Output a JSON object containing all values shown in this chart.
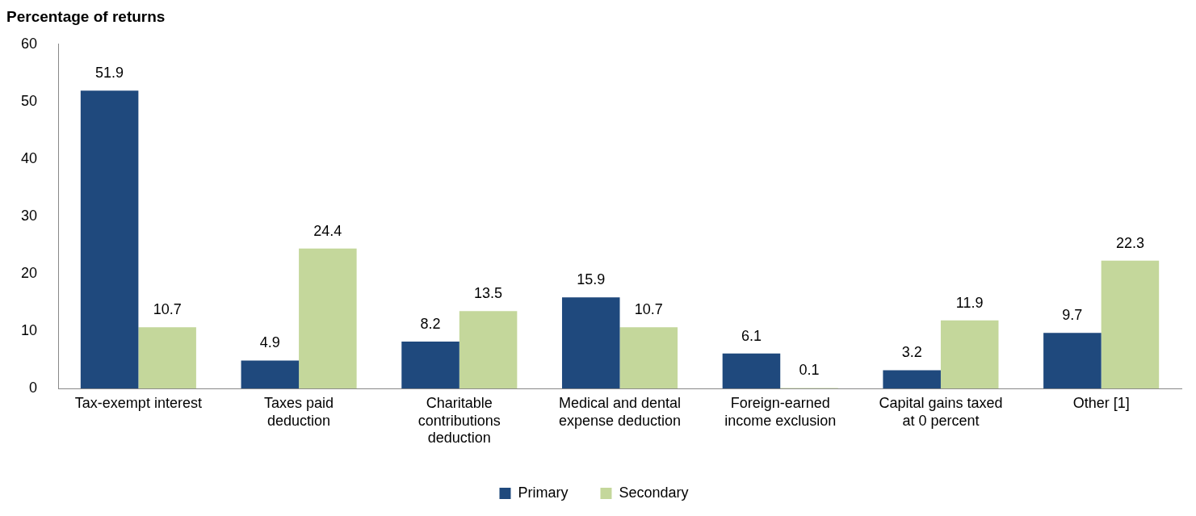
{
  "chart_data": {
    "type": "bar",
    "title": "Percentage of returns",
    "categories": [
      "Tax-exempt interest",
      "Taxes paid deduction",
      "Charitable contributions deduction",
      "Medical and dental expense deduction",
      "Foreign-earned income exclusion",
      "Capital gains taxed at 0 percent",
      "Other [1]"
    ],
    "series": [
      {
        "name": "Primary",
        "color": "#1f497d",
        "values": [
          51.9,
          4.9,
          8.2,
          15.9,
          6.1,
          3.2,
          9.7
        ]
      },
      {
        "name": "Secondary",
        "color": "#c4d79b",
        "values": [
          10.7,
          24.4,
          13.5,
          10.7,
          0.1,
          11.9,
          22.3
        ]
      }
    ],
    "ylim": [
      0,
      60
    ],
    "yticks": [
      0,
      10,
      20,
      30,
      40,
      50,
      60
    ],
    "grid": false,
    "legend": "bottom",
    "data_labels": true
  }
}
